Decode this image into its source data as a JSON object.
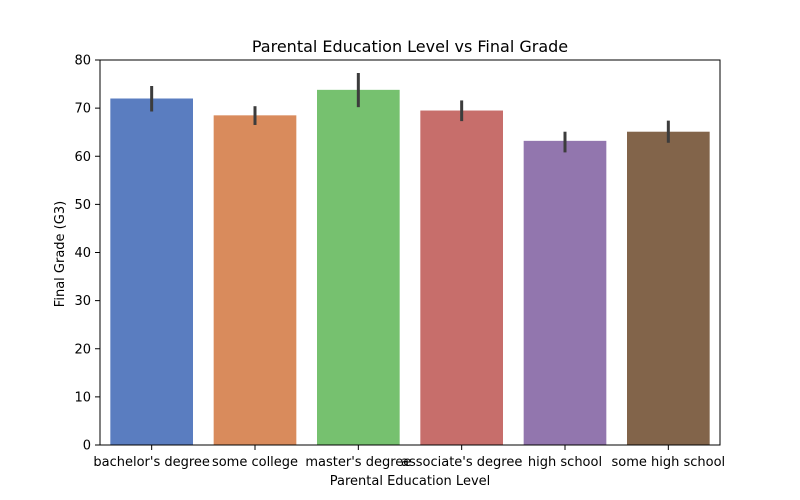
{
  "chart_data": {
    "type": "bar",
    "title": "Parental Education Level vs Final Grade",
    "xlabel": "Parental Education Level",
    "ylabel": "Final Grade (G3)",
    "ylim": [
      0,
      80
    ],
    "yticks": [
      0,
      10,
      20,
      30,
      40,
      50,
      60,
      70,
      80
    ],
    "grid": false,
    "legend": "none",
    "categories": [
      "bachelor's degree",
      "some college",
      "master's degree",
      "associate's degree",
      "high school",
      "some high school"
    ],
    "values": [
      72.0,
      68.5,
      73.8,
      69.5,
      63.2,
      65.1
    ],
    "error_bars": [
      [
        69.3,
        74.6
      ],
      [
        66.5,
        70.4
      ],
      [
        70.2,
        77.3
      ],
      [
        67.3,
        71.6
      ],
      [
        60.8,
        65.1
      ],
      [
        62.8,
        67.4
      ]
    ],
    "colors": [
      "#5a7dc0",
      "#d98b5c",
      "#76c16f",
      "#c76e6b",
      "#9276ae",
      "#82644a"
    ],
    "error_bar_color": "#3c3c3c"
  }
}
